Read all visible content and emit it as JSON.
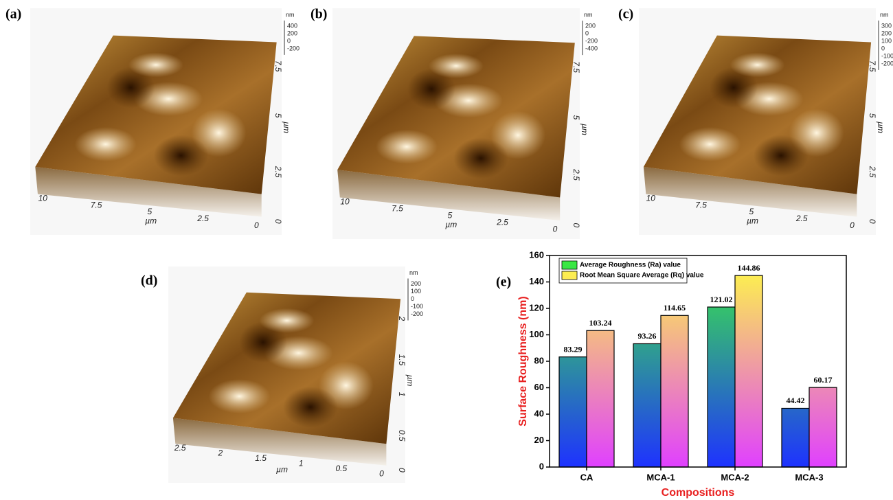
{
  "panels": [
    {
      "label": "(a)",
      "z_unit": "nm",
      "z_ticks": [
        "400",
        "200",
        "0",
        "-200"
      ],
      "y_unit": "µm",
      "y_ticks": [
        "0",
        "2.5",
        "5",
        "7.5"
      ],
      "x_unit": "µm",
      "x_ticks": [
        "10",
        "7.5",
        "5",
        "2.5",
        "0"
      ]
    },
    {
      "label": "(b)",
      "z_unit": "nm",
      "z_ticks": [
        "200",
        "0",
        "-200",
        "-400"
      ],
      "y_unit": "µm",
      "y_ticks": [
        "0",
        "2.5",
        "5",
        "7.5"
      ],
      "x_unit": "µm",
      "x_ticks": [
        "10",
        "7.5",
        "5",
        "2.5",
        "0"
      ]
    },
    {
      "label": "(c)",
      "z_unit": "nm",
      "z_ticks": [
        "300",
        "200",
        "100",
        "0",
        "-100",
        "-200"
      ],
      "y_unit": "µm",
      "y_ticks": [
        "0",
        "2.5",
        "5",
        "7.5"
      ],
      "x_unit": "µm",
      "x_ticks": [
        "10",
        "7.5",
        "5",
        "2.5",
        "0"
      ]
    },
    {
      "label": "(d)",
      "z_unit": "nm",
      "z_ticks": [
        "200",
        "100",
        "0",
        "-100",
        "-200"
      ],
      "y_unit": "µm",
      "y_ticks": [
        "0",
        "0.5",
        "1",
        "1.5",
        "2"
      ],
      "x_unit": "µm",
      "x_ticks": [
        "2.5",
        "2",
        "1.5",
        "1",
        "0.5",
        "0"
      ]
    }
  ],
  "chart_data": {
    "type": "bar",
    "label": "(e)",
    "xlabel": "Compositions",
    "ylabel": "Surface Roughness (nm)",
    "categories": [
      "CA",
      "MCA-1",
      "MCA-2",
      "MCA-3"
    ],
    "series": [
      {
        "name": "Average Roughness (Ra) value",
        "colors": [
          "#3cf03c",
          "#1e32ff"
        ],
        "values": [
          83.29,
          93.26,
          121.02,
          44.42
        ]
      },
      {
        "name": "Root Mean Square Average (Rq) value",
        "colors": [
          "#ffff40",
          "#e040ff"
        ],
        "values": [
          103.24,
          114.65,
          144.86,
          60.17
        ]
      }
    ],
    "ylim": [
      0,
      160
    ],
    "yticks": [
      0,
      20,
      40,
      60,
      80,
      100,
      120,
      140,
      160
    ],
    "legend": "top-left"
  }
}
